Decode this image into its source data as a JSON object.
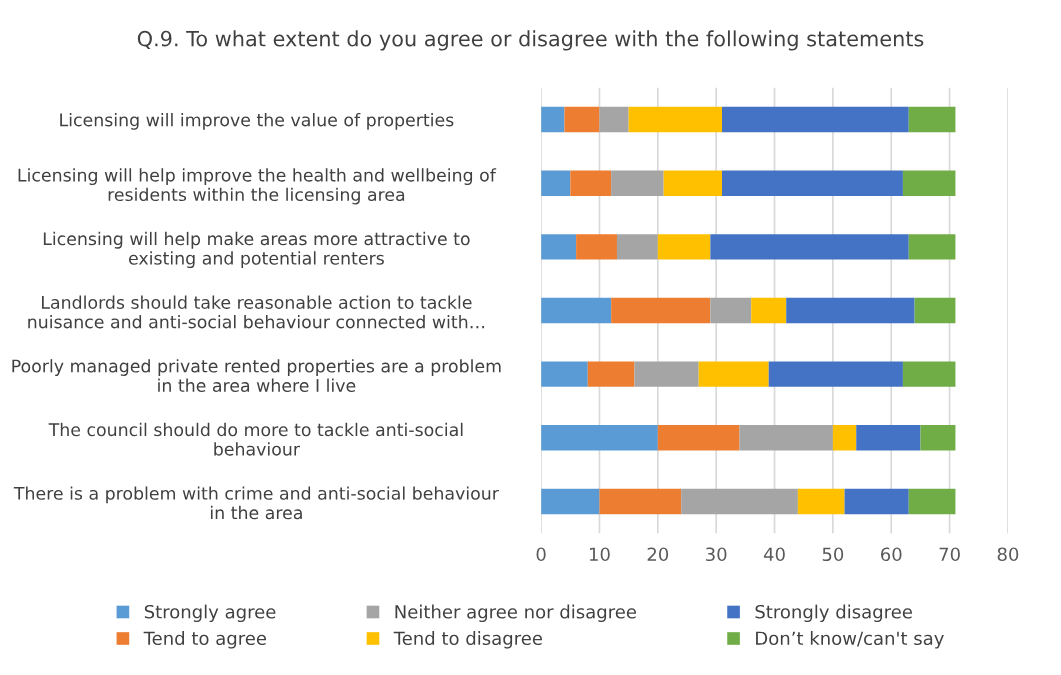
{
  "chart_data": {
    "type": "bar",
    "orientation": "horizontal",
    "stacked": true,
    "title": "Q.9. To what extent do you agree or disagree with the following statements",
    "categories": [
      "Licensing will improve the value of properties",
      "Licensing will help improve the health and wellbeing of\nresidents within the licensing area",
      "Licensing will help make areas more attractive to\nexisting and potential renters",
      "Landlords should take reasonable action to tackle\nnuisance and anti-social behaviour connected with…",
      "Poorly managed private rented properties are a problem\nin the area where I live",
      "The council should do more to tackle anti-social\nbehaviour",
      "There is a problem with crime and anti-social behaviour\nin the area"
    ],
    "series": [
      {
        "name": "Strongly agree",
        "color": "#5b9bd5",
        "values": [
          4,
          5,
          6,
          12,
          8,
          20,
          10
        ]
      },
      {
        "name": "Tend to agree",
        "color": "#ed7d31",
        "values": [
          6,
          7,
          7,
          17,
          8,
          14,
          14
        ]
      },
      {
        "name": "Neither agree nor disagree",
        "color": "#a5a5a5",
        "values": [
          5,
          9,
          7,
          7,
          11,
          16,
          20
        ]
      },
      {
        "name": "Tend to disagree",
        "color": "#ffc000",
        "values": [
          16,
          10,
          9,
          6,
          12,
          4,
          8
        ]
      },
      {
        "name": "Strongly disagree",
        "color": "#4472c4",
        "values": [
          32,
          31,
          34,
          22,
          23,
          11,
          11
        ]
      },
      {
        "name": "Don’t know/can't say",
        "color": "#70ad47",
        "values": [
          8,
          9,
          8,
          7,
          9,
          6,
          8
        ]
      }
    ],
    "xlim": [
      0,
      80
    ],
    "xticks": [
      0,
      10,
      20,
      30,
      40,
      50,
      60,
      70,
      80
    ],
    "grid": "x",
    "legend": "bottom"
  }
}
